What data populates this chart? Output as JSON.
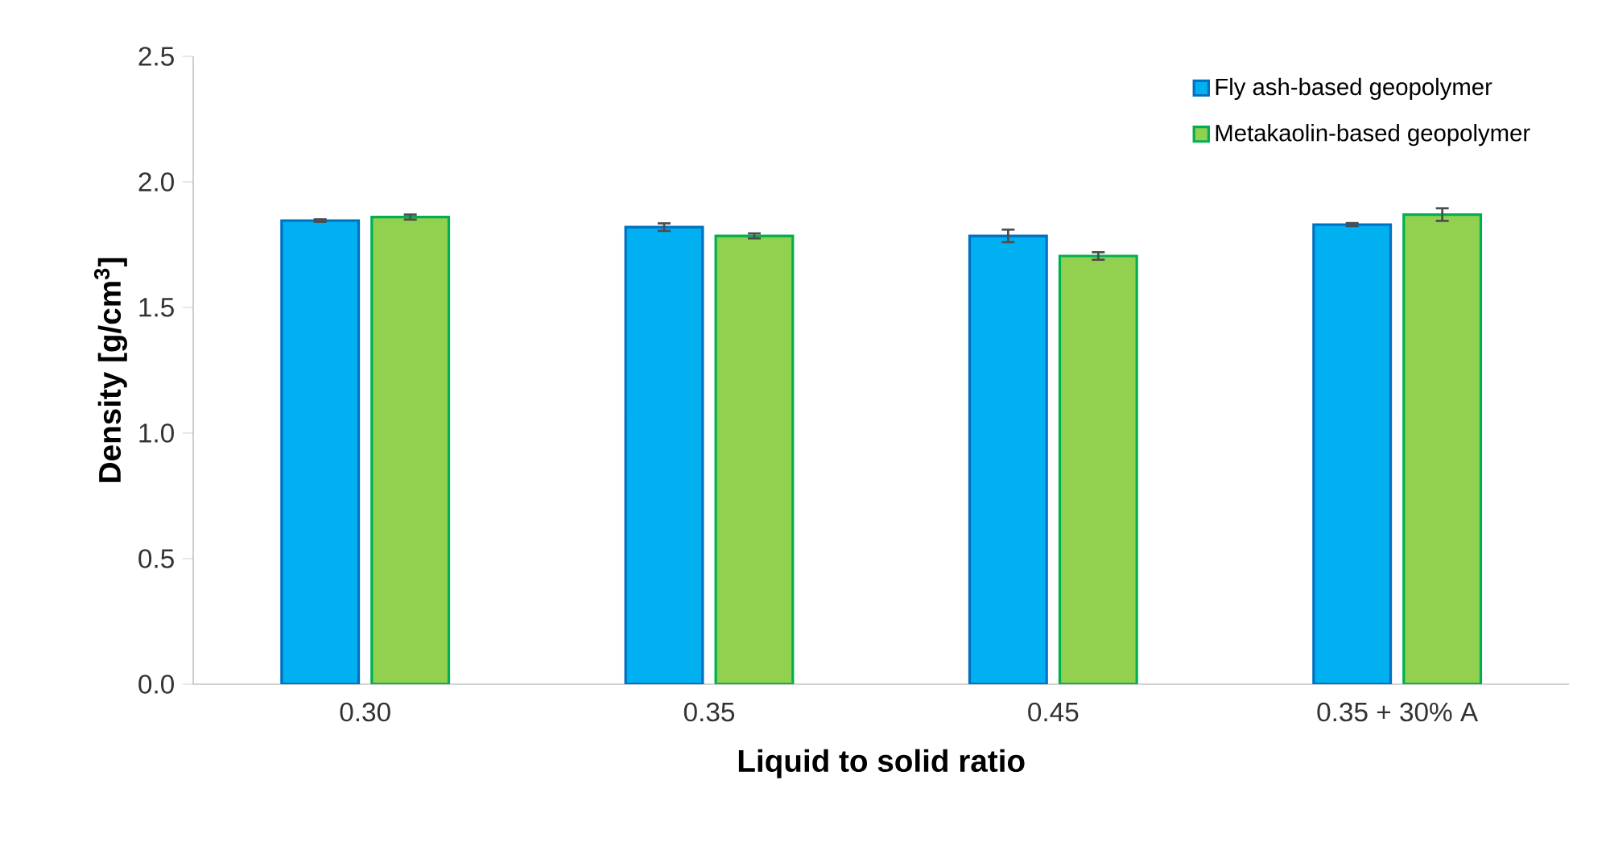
{
  "chart_data": {
    "type": "bar",
    "xlabel": "Liquid to solid ratio",
    "ylabel": "Density [g/cm$^{3}$]",
    "categories": [
      "0.30",
      "0.35",
      "0.45",
      "0.35 + 30% A"
    ],
    "series": [
      {
        "name": "Fly ash-based geopolymer",
        "color": "#00b0f0",
        "values": [
          1.846,
          1.82,
          1.785,
          1.83
        ],
        "errors": [
          0.005,
          0.015,
          0.025,
          0.006
        ]
      },
      {
        "name": "Metakaolin-based geopolymer",
        "color": "#92d050",
        "values": [
          1.86,
          1.785,
          1.705,
          1.87
        ],
        "errors": [
          0.01,
          0.01,
          0.015,
          0.025
        ]
      }
    ],
    "ylim": [
      0,
      2.5
    ],
    "yticks": [
      {
        "value": 0,
        "label": "0.0"
      },
      {
        "value": 0.5,
        "label": "0.5"
      },
      {
        "value": 1,
        "label": "1.0"
      },
      {
        "value": 1.5,
        "label": "1.5"
      },
      {
        "value": 2,
        "label": "2.0"
      },
      {
        "value": 2.5,
        "label": "2.5"
      }
    ],
    "grid": false,
    "legend": "top right"
  }
}
